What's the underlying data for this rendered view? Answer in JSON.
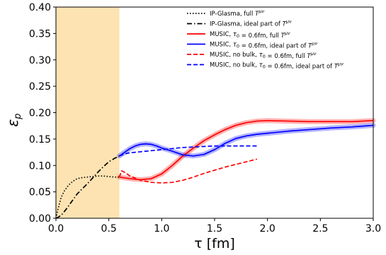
{
  "chart_data": {
    "type": "line",
    "xlabel": "τ [fm]",
    "ylabel": "ε",
    "ylabel_sub": "p",
    "xlim": [
      0.0,
      3.0
    ],
    "ylim": [
      0.0,
      0.4
    ],
    "xticks": [
      "0.0",
      "0.5",
      "1.0",
      "1.5",
      "2.0",
      "2.5",
      "3.0"
    ],
    "yticks": [
      "0.00",
      "0.05",
      "0.10",
      "0.15",
      "0.20",
      "0.25",
      "0.30",
      "0.35",
      "0.40"
    ],
    "grid": false,
    "legend_position": "top-right",
    "shaded_region": {
      "x": [
        0.0,
        0.6
      ],
      "color": "#fde3b2"
    },
    "series": [
      {
        "name": "IP-Glasma, full T^{μν}",
        "color": "#000000",
        "dash": "dotted",
        "points": [
          [
            0.0,
            0.0
          ],
          [
            0.02,
            0.018
          ],
          [
            0.05,
            0.04
          ],
          [
            0.08,
            0.052
          ],
          [
            0.12,
            0.063
          ],
          [
            0.16,
            0.07
          ],
          [
            0.2,
            0.075
          ],
          [
            0.25,
            0.077
          ],
          [
            0.3,
            0.078
          ],
          [
            0.35,
            0.079
          ],
          [
            0.4,
            0.08
          ],
          [
            0.45,
            0.08
          ],
          [
            0.5,
            0.079
          ],
          [
            0.55,
            0.078
          ],
          [
            0.6,
            0.078
          ]
        ]
      },
      {
        "name": "IP-Glasma, ideal part of T^{μν}",
        "color": "#000000",
        "dash": "dashdot",
        "points": [
          [
            0.0,
            0.0
          ],
          [
            0.03,
            0.003
          ],
          [
            0.06,
            0.008
          ],
          [
            0.1,
            0.018
          ],
          [
            0.15,
            0.032
          ],
          [
            0.2,
            0.046
          ],
          [
            0.25,
            0.056
          ],
          [
            0.3,
            0.066
          ],
          [
            0.35,
            0.077
          ],
          [
            0.4,
            0.088
          ],
          [
            0.45,
            0.098
          ],
          [
            0.5,
            0.107
          ],
          [
            0.55,
            0.113
          ],
          [
            0.6,
            0.118
          ]
        ]
      },
      {
        "name": "MUSIC, τ_0 = 0.6fm, full T^{μν}",
        "color": "#ff0000",
        "dash": "solid",
        "band": true,
        "points": [
          [
            0.6,
            0.078
          ],
          [
            0.7,
            0.075
          ],
          [
            0.8,
            0.073
          ],
          [
            0.9,
            0.075
          ],
          [
            1.0,
            0.084
          ],
          [
            1.1,
            0.1
          ],
          [
            1.2,
            0.118
          ],
          [
            1.3,
            0.133
          ],
          [
            1.4,
            0.147
          ],
          [
            1.5,
            0.158
          ],
          [
            1.6,
            0.168
          ],
          [
            1.7,
            0.176
          ],
          [
            1.8,
            0.181
          ],
          [
            1.9,
            0.184
          ],
          [
            2.0,
            0.185
          ],
          [
            2.2,
            0.184
          ],
          [
            2.4,
            0.183
          ],
          [
            2.6,
            0.183
          ],
          [
            2.8,
            0.183
          ],
          [
            3.0,
            0.185
          ]
        ]
      },
      {
        "name": "MUSIC, τ_0 = 0.6fm, ideal part of T^{μν}",
        "color": "#0000ff",
        "dash": "solid",
        "band": true,
        "points": [
          [
            0.6,
            0.118
          ],
          [
            0.65,
            0.125
          ],
          [
            0.7,
            0.132
          ],
          [
            0.75,
            0.137
          ],
          [
            0.8,
            0.14
          ],
          [
            0.85,
            0.141
          ],
          [
            0.9,
            0.14
          ],
          [
            0.95,
            0.137
          ],
          [
            1.0,
            0.133
          ],
          [
            1.1,
            0.127
          ],
          [
            1.2,
            0.12
          ],
          [
            1.3,
            0.118
          ],
          [
            1.4,
            0.121
          ],
          [
            1.5,
            0.13
          ],
          [
            1.6,
            0.142
          ],
          [
            1.7,
            0.151
          ],
          [
            1.8,
            0.156
          ],
          [
            1.9,
            0.159
          ],
          [
            2.0,
            0.161
          ],
          [
            2.2,
            0.165
          ],
          [
            2.4,
            0.168
          ],
          [
            2.6,
            0.171
          ],
          [
            2.8,
            0.173
          ],
          [
            3.0,
            0.176
          ]
        ]
      },
      {
        "name": "MUSIC, no bulk, τ_0 = 0.6fm, full T^{μν}",
        "color": "#ff0000",
        "dash": "dashed",
        "points": [
          [
            0.6,
            0.078
          ],
          [
            0.62,
            0.09
          ],
          [
            0.65,
            0.087
          ],
          [
            0.7,
            0.08
          ],
          [
            0.8,
            0.072
          ],
          [
            0.9,
            0.068
          ],
          [
            1.0,
            0.067
          ],
          [
            1.1,
            0.068
          ],
          [
            1.2,
            0.072
          ],
          [
            1.3,
            0.078
          ],
          [
            1.4,
            0.085
          ],
          [
            1.5,
            0.091
          ],
          [
            1.6,
            0.097
          ],
          [
            1.7,
            0.102
          ],
          [
            1.8,
            0.107
          ],
          [
            1.9,
            0.112
          ]
        ]
      },
      {
        "name": "MUSIC, no bulk, τ_0 = 0.6fm, ideal part of T^{μν}",
        "color": "#0000ff",
        "dash": "dashed",
        "points": [
          [
            0.6,
            0.118
          ],
          [
            0.65,
            0.122
          ],
          [
            0.7,
            0.124
          ],
          [
            0.8,
            0.126
          ],
          [
            0.9,
            0.128
          ],
          [
            1.0,
            0.13
          ],
          [
            1.1,
            0.132
          ],
          [
            1.2,
            0.134
          ],
          [
            1.3,
            0.135
          ],
          [
            1.4,
            0.136
          ],
          [
            1.5,
            0.137
          ],
          [
            1.6,
            0.137
          ],
          [
            1.7,
            0.137
          ],
          [
            1.8,
            0.137
          ],
          [
            1.9,
            0.137
          ]
        ]
      }
    ]
  }
}
